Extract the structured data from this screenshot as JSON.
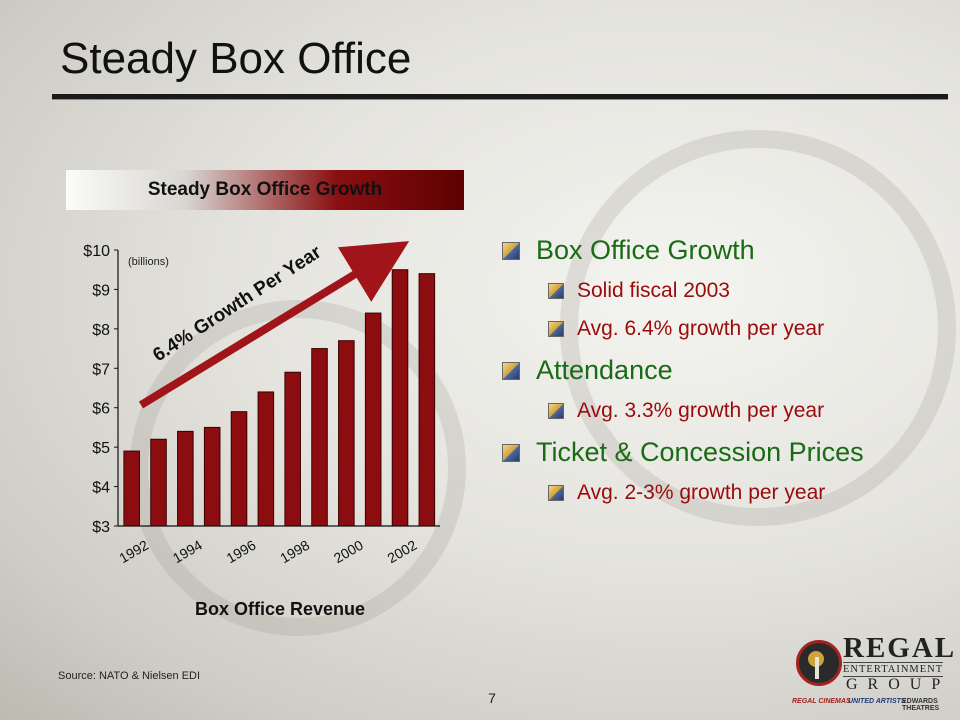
{
  "slide": {
    "title": "Steady Box Office",
    "source": "Source: NATO & Nielsen EDI",
    "page_number": "7"
  },
  "chart_banner": "Steady Box Office Growth",
  "chart_data": {
    "type": "bar",
    "title": "Steady Box Office Growth",
    "xlabel": "Box Office Revenue",
    "ylabel": "",
    "units_note": "(billions)",
    "categories": [
      "1992",
      "1993",
      "1994",
      "1995",
      "1996",
      "1997",
      "1998",
      "1999",
      "2000",
      "2001",
      "2002",
      "2003"
    ],
    "x_tick_labels": [
      "1992",
      "1994",
      "1996",
      "1998",
      "2000",
      "2002"
    ],
    "values": [
      4.9,
      5.2,
      5.4,
      5.5,
      5.9,
      6.4,
      6.9,
      7.5,
      7.7,
      8.4,
      9.5,
      9.4
    ],
    "y_ticks": [
      "$3",
      "$4",
      "$5",
      "$6",
      "$7",
      "$8",
      "$9",
      "$10"
    ],
    "ylim": [
      3,
      10
    ],
    "bar_color": "#8b0d10",
    "annotation": "6.4% Growth Per Year",
    "grid": false
  },
  "bullets": [
    {
      "label": "Box Office Growth",
      "subs": [
        "Solid fiscal 2003",
        "Avg. 6.4% growth per year"
      ]
    },
    {
      "label": "Attendance",
      "subs": [
        "Avg. 3.3% growth per year"
      ]
    },
    {
      "label": "Ticket & Concession Prices",
      "subs": [
        "Avg. 2-3% growth per year"
      ]
    }
  ],
  "logo": {
    "name": "REGAL",
    "line2": "ENTERTAINMENT",
    "line3": "GROUP",
    "brands": [
      "REGAL CINEMAS",
      "UNITED ARTISTS",
      "EDWARDS THEATRES"
    ]
  },
  "colors": {
    "bullet_main": "#1a6b16",
    "bullet_sub": "#9a0b0b",
    "bar": "#8b0d10",
    "arrow": "#a0141a"
  }
}
